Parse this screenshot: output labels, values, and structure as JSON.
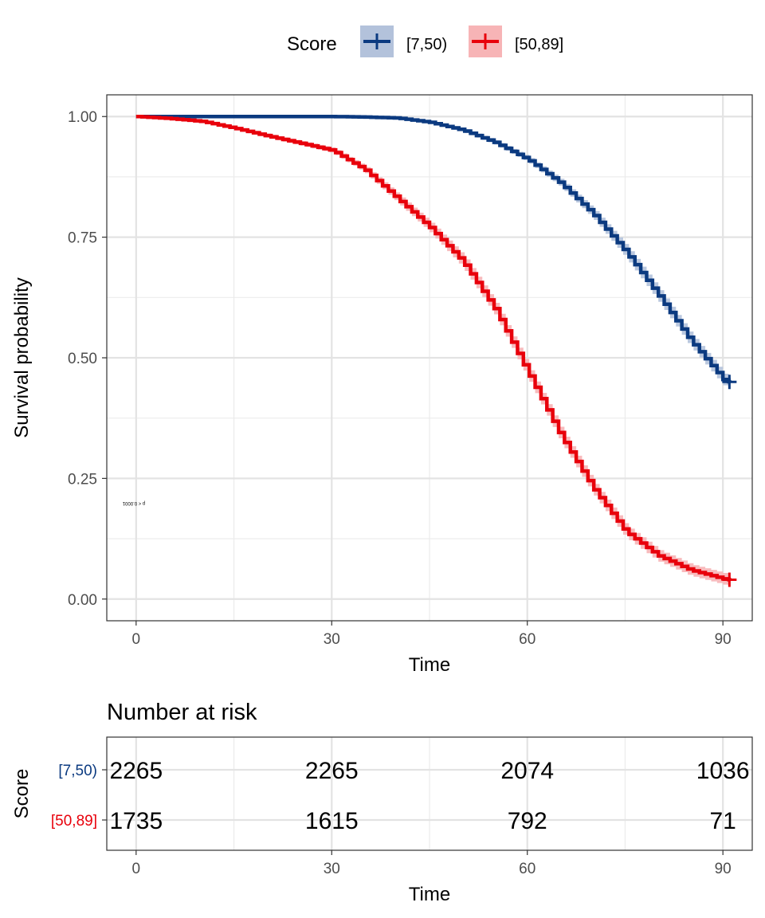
{
  "legend": {
    "title": "Score",
    "entries": [
      "[7,50)",
      "[50,89]"
    ]
  },
  "chart_data": [
    {
      "type": "line",
      "xlabel": "Time",
      "ylabel": "Survival probability",
      "xlim": [
        -4.5,
        94.5
      ],
      "ylim": [
        -0.045,
        1.045
      ],
      "x_ticks": [
        0,
        30,
        60,
        90
      ],
      "x_tick_labels": [
        "0",
        "30",
        "60",
        "90"
      ],
      "y_ticks": [
        0,
        0.25,
        0.5,
        0.75,
        1
      ],
      "y_tick_labels": [
        "0.00",
        "0.25",
        "0.50",
        "0.75",
        "1.00"
      ],
      "grid": true,
      "legend_position": "top",
      "annotation": "p < 0.0001",
      "series": [
        {
          "name": "[7,50)",
          "color": "#0b3a80",
          "band_color": "#b3c2db",
          "x": [
            0,
            5,
            10,
            15,
            20,
            25,
            30,
            35,
            40,
            45,
            50,
            55,
            60,
            65,
            70,
            75,
            80,
            85,
            90,
            91
          ],
          "y": [
            1.0,
            1.0,
            1.0,
            1.0,
            1.0,
            1.0,
            1.0,
            0.999,
            0.997,
            0.988,
            0.972,
            0.946,
            0.911,
            0.862,
            0.798,
            0.72,
            0.63,
            0.535,
            0.455,
            0.45
          ]
        },
        {
          "name": "[50,89]",
          "color": "#e8000b",
          "band_color": "#f7b4b6",
          "x": [
            0,
            5,
            10,
            15,
            20,
            25,
            30,
            35,
            40,
            45,
            50,
            55,
            60,
            65,
            70,
            75,
            80,
            85,
            90,
            91
          ],
          "y": [
            1.0,
            0.996,
            0.99,
            0.976,
            0.96,
            0.945,
            0.93,
            0.89,
            0.83,
            0.77,
            0.7,
            0.6,
            0.47,
            0.34,
            0.23,
            0.14,
            0.09,
            0.06,
            0.042,
            0.04
          ]
        }
      ]
    },
    {
      "type": "table",
      "title": "Number at risk",
      "xlabel": "Time",
      "ylabel": "Score",
      "xlim": [
        -4.5,
        94.5
      ],
      "x_ticks": [
        0,
        30,
        60,
        90
      ],
      "x_tick_labels": [
        "0",
        "30",
        "60",
        "90"
      ],
      "rows": [
        {
          "name": "[7,50)",
          "color": "#0b3a80",
          "values": [
            "2265",
            "2265",
            "2074",
            "1036"
          ]
        },
        {
          "name": "[50,89]",
          "color": "#e8000b",
          "values": [
            "1735",
            "1615",
            "792",
            "71"
          ]
        }
      ]
    }
  ]
}
